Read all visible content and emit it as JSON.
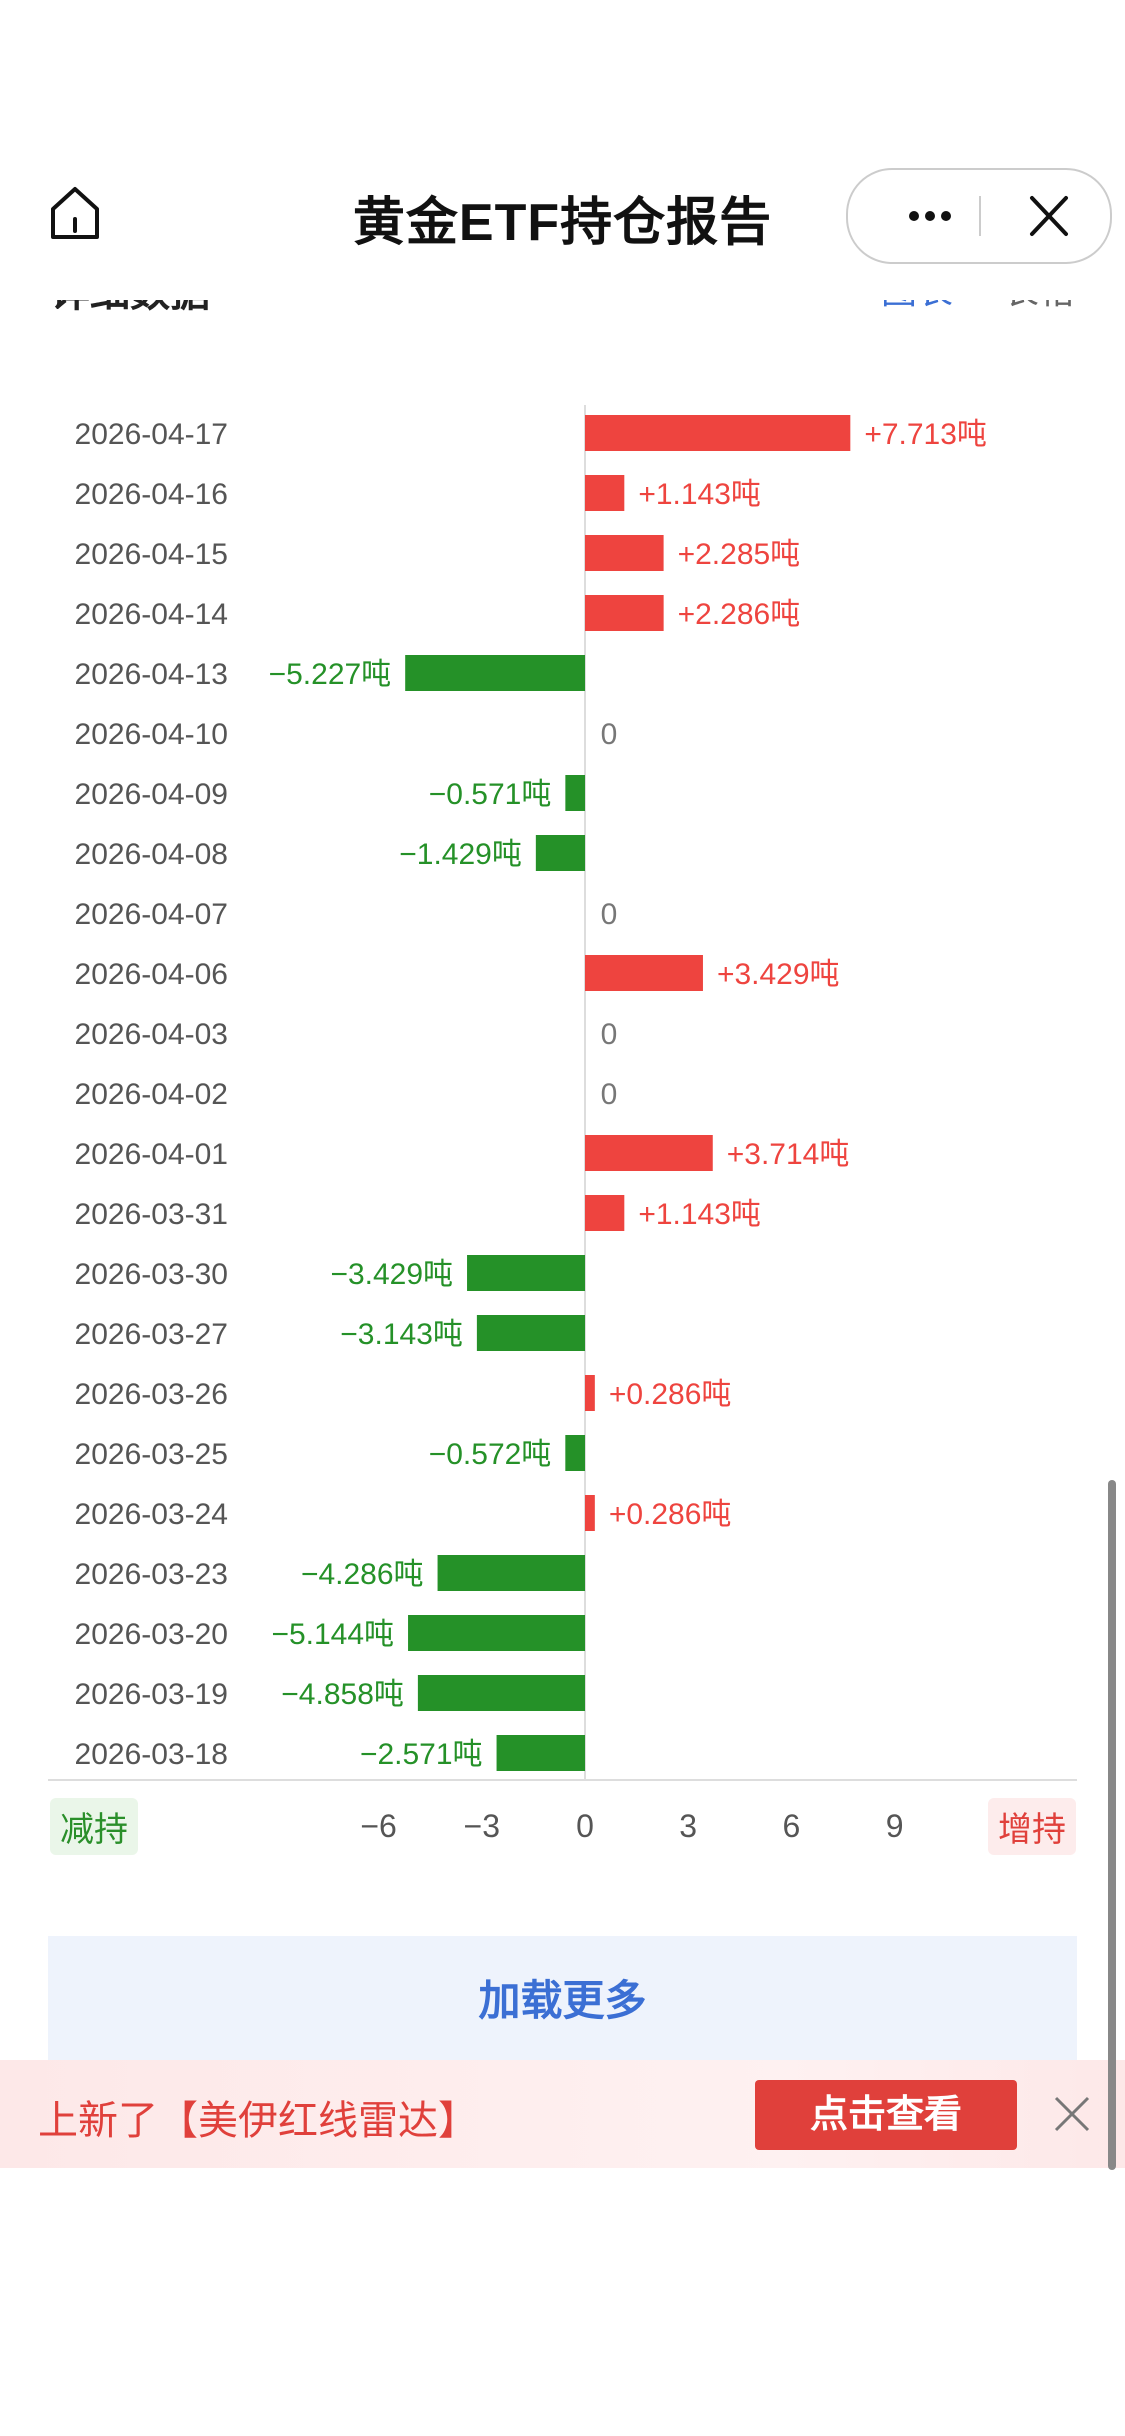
{
  "header": {
    "title": "黄金ETF持仓报告"
  },
  "section": {
    "title": "详细数据",
    "toggle_chart": "图表",
    "toggle_table": "表格"
  },
  "chart_data": {
    "type": "bar",
    "orientation": "horizontal",
    "categories": [
      "2026-04-17",
      "2026-04-16",
      "2026-04-15",
      "2026-04-14",
      "2026-04-13",
      "2026-04-10",
      "2026-04-09",
      "2026-04-08",
      "2026-04-07",
      "2026-04-06",
      "2026-04-03",
      "2026-04-02",
      "2026-04-01",
      "2026-03-31",
      "2026-03-30",
      "2026-03-27",
      "2026-03-26",
      "2026-03-25",
      "2026-03-24",
      "2026-03-23",
      "2026-03-20",
      "2026-03-19",
      "2026-03-18"
    ],
    "values": [
      7.713,
      1.143,
      2.285,
      2.286,
      -5.227,
      0,
      -0.571,
      -1.429,
      0,
      3.429,
      0,
      0,
      3.714,
      1.143,
      -3.429,
      -3.143,
      0.286,
      -0.572,
      0.286,
      -4.286,
      -5.144,
      -4.858,
      -2.571
    ],
    "value_labels": [
      "+7.713吨",
      "+1.143吨",
      "+2.285吨",
      "+2.286吨",
      "−5.227吨",
      "0",
      "−0.571吨",
      "−1.429吨",
      "0",
      "+3.429吨",
      "0",
      "0",
      "+3.714吨",
      "+1.143吨",
      "−3.429吨",
      "−3.143吨",
      "+0.286吨",
      "−0.572吨",
      "+0.286吨",
      "−4.286吨",
      "−5.144吨",
      "−4.858吨",
      "−2.571吨"
    ],
    "xticks": [
      -6,
      -3,
      0,
      3,
      6,
      9
    ],
    "xtick_labels": [
      "−6",
      "−3",
      "0",
      "3",
      "6",
      "9"
    ],
    "xlim": [
      -6,
      9
    ],
    "positive_color": "#ee443f",
    "negative_color": "#259128",
    "legend_negative": "减持",
    "legend_positive": "增持"
  },
  "load_more": {
    "label": "加载更多"
  },
  "banner": {
    "text": "上新了【美伊红线雷达】",
    "button": "点击查看"
  }
}
